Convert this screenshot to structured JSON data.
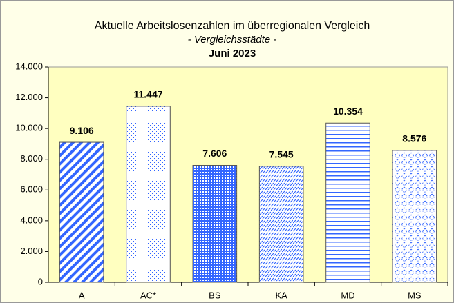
{
  "chart_data": {
    "type": "bar",
    "title": "Aktuelle Arbeitslosenzahlen im überregionalen Vergleich",
    "subtitle": "- Vergleichsstädte -",
    "date": "Juni 2023",
    "categories": [
      "A",
      "AC*",
      "BS",
      "KA",
      "MD",
      "MS"
    ],
    "values": [
      9106,
      11447,
      7606,
      7545,
      10354,
      8576
    ],
    "value_labels": [
      "9.106",
      "11.447",
      "7.606",
      "7.545",
      "10.354",
      "8.576"
    ],
    "color": "#3366ff",
    "ylim": [
      0,
      14000
    ],
    "yticks": [
      0,
      {
        "value": 2000,
        "label": "2.000"
      },
      {
        "value": 4000,
        "label": "4.000"
      },
      {
        "value": 6000,
        "label": "6.000"
      },
      {
        "value": 8000,
        "label": "8.000"
      },
      {
        "value": 10000,
        "label": "10.000"
      },
      {
        "value": 12000,
        "label": "12.000"
      },
      {
        "value": 14000,
        "label": "14.000"
      }
    ],
    "grid": false
  }
}
